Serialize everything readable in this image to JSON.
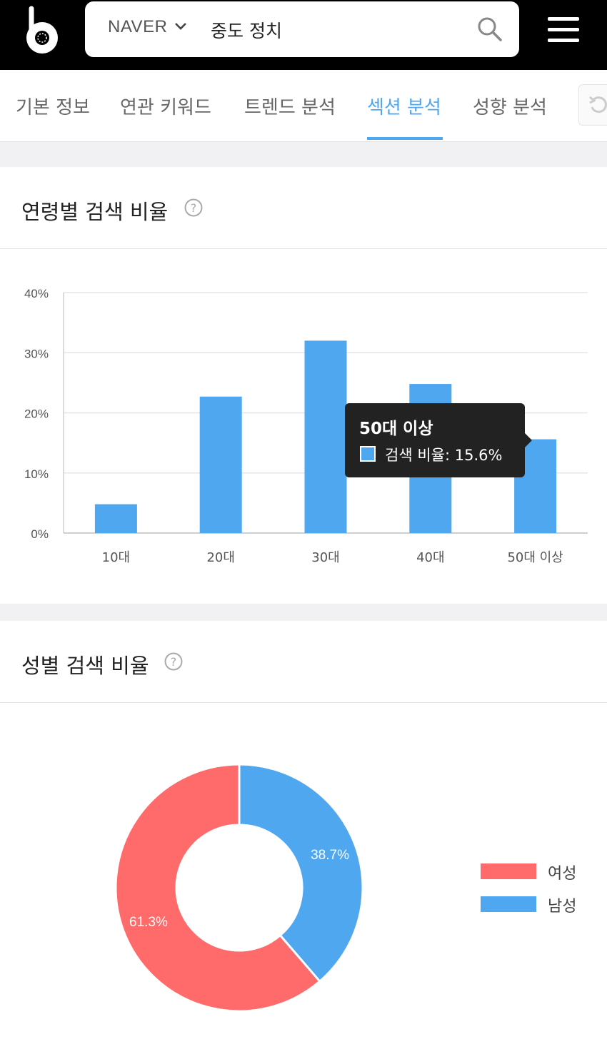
{
  "header": {
    "engine": "NAVER",
    "query": "중도 정치"
  },
  "tabs": [
    {
      "label": "기본 정보",
      "active": false
    },
    {
      "label": "연관 키워드",
      "active": false
    },
    {
      "label": "트렌드 분석",
      "active": false
    },
    {
      "label": "섹션 분석",
      "active": true
    },
    {
      "label": "성향 분석",
      "active": false
    }
  ],
  "age_card": {
    "title": "연령별 검색 비율",
    "tooltip": {
      "title": "50대 이상",
      "series_label": "검색 비율:",
      "value_text": "15.6%"
    }
  },
  "gender_card": {
    "title": "성별 검색 비율"
  },
  "colors": {
    "accent": "#4fa7f0",
    "female": "#ff6b6b",
    "male": "#4fa7f0"
  },
  "chart_data": [
    {
      "type": "bar",
      "categories": [
        "10대",
        "20대",
        "30대",
        "40대",
        "50대 이상"
      ],
      "series": [
        {
          "name": "검색 비율",
          "values": [
            4.8,
            22.7,
            32.0,
            24.8,
            15.6
          ]
        }
      ],
      "ylim": [
        0,
        40
      ],
      "yticks": [
        0,
        10,
        20,
        30,
        40
      ],
      "ytick_labels": [
        "0%",
        "10%",
        "20%",
        "30%",
        "40%"
      ],
      "grid": true
    },
    {
      "type": "pie",
      "donut": true,
      "labels": [
        "여성",
        "남성"
      ],
      "values": [
        61.3,
        38.7
      ],
      "value_labels": [
        "61.3%",
        "38.7%"
      ],
      "legend": "right"
    }
  ]
}
